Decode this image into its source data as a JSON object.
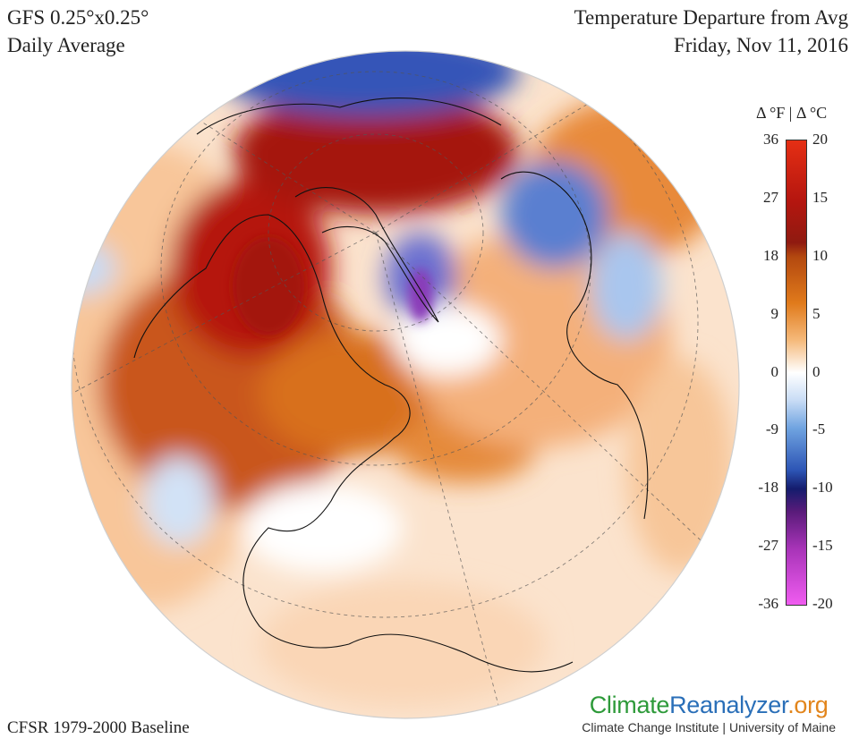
{
  "header": {
    "model_line1": "GFS 0.25°x0.25°",
    "model_line2": "Daily Average",
    "title": "Temperature Departure from Avg",
    "date": "Friday, Nov 11, 2016"
  },
  "footer": {
    "baseline": "CFSR 1979-2000 Baseline",
    "logo_climate": "Climate",
    "logo_reanalyzer": "Reanalyzer",
    "logo_org": ".org",
    "logo_sub": "Climate Change Institute | University of Maine"
  },
  "legend": {
    "unit_label": "Δ °F | Δ °C",
    "fahrenheit_ticks": [
      "36",
      "27",
      "18",
      "9",
      "0",
      "-9",
      "-18",
      "-27",
      "-36"
    ],
    "celsius_ticks": [
      "20",
      "15",
      "10",
      "5",
      "0",
      "-5",
      "-10",
      "-15",
      "-20"
    ],
    "colors": {
      "strong_warm": "#b5160f",
      "warm": "#e07a1b",
      "neutral": "#ffffff",
      "cool": "#6fa3e0",
      "strong_cool": "#141c6d",
      "extreme_cold": "#f05cf0"
    }
  },
  "map": {
    "projection": "orthographic",
    "regions": [
      {
        "name": "background-warm-ocean",
        "color": "#f7c9a0"
      },
      {
        "name": "north-america-warm",
        "color": "#c9561b"
      },
      {
        "name": "canada-hot",
        "color": "#b5160f"
      },
      {
        "name": "arctic-hot",
        "color": "#9e1a10"
      },
      {
        "name": "siberia-cold",
        "color": "#3555b8"
      },
      {
        "name": "greenland-cold",
        "color": "#5a6fd0"
      },
      {
        "name": "europe-cold",
        "color": "#8ab0e6"
      },
      {
        "name": "atlantic-neutral",
        "color": "#ffffff"
      }
    ]
  }
}
